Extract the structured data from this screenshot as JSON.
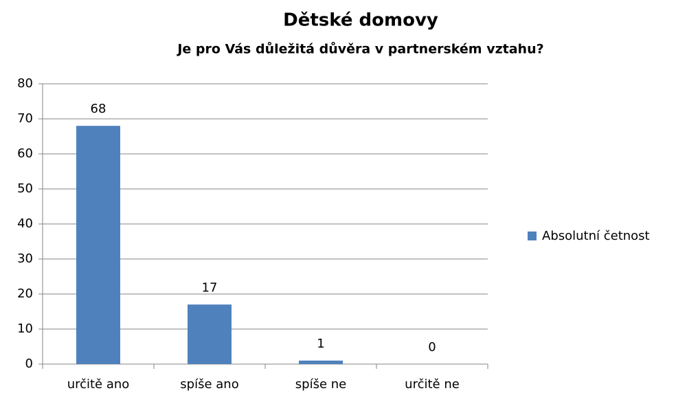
{
  "chart_data": {
    "type": "bar",
    "title": "Dětské domovy",
    "subtitle": "Je pro Vás důležitá důvěra v partnerském vztahu?",
    "categories": [
      "určitě ano",
      "spíše ano",
      "spíše ne",
      "určitě ne"
    ],
    "series": [
      {
        "name": "Absolutní četnost",
        "color": "#4f81bd",
        "values": [
          68,
          17,
          1,
          0
        ]
      }
    ],
    "ylim": [
      0,
      80
    ],
    "yticks": [
      0,
      10,
      20,
      30,
      40,
      50,
      60,
      70,
      80
    ],
    "grid": true,
    "legend": "right",
    "data_labels": true
  }
}
